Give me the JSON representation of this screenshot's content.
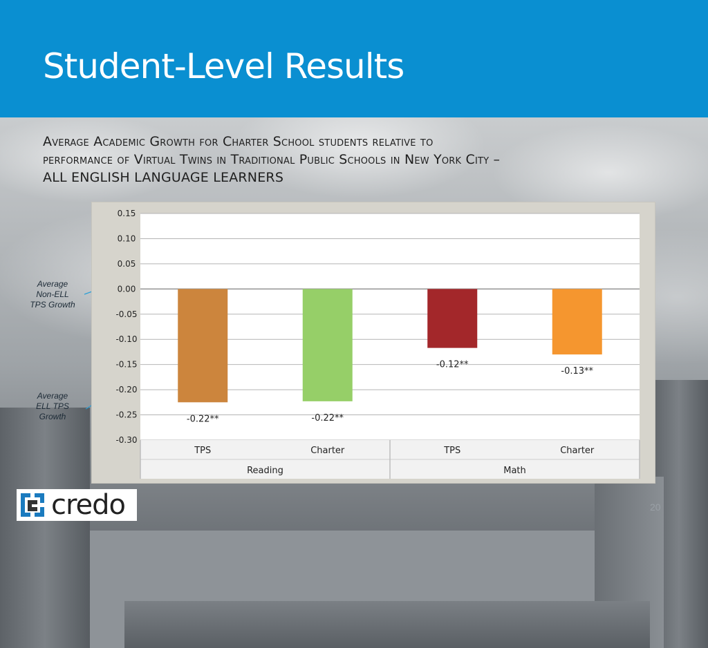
{
  "slide": {
    "title": "Student-Level Results",
    "subtitle_lines": [
      "Average Academic Growth for Charter School students relative to",
      "performance of Virtual Twins in Traditional Public Schools in New York City –",
      "ALL ENGLISH LANGUAGE LEARNERS"
    ],
    "page_number": "20",
    "logo_text": "credo"
  },
  "annotations": {
    "non_ell": [
      "Average",
      "Non-ELL",
      "TPS Growth"
    ],
    "ell": [
      "Average",
      "ELL TPS",
      "Growth"
    ]
  },
  "chart_data": {
    "type": "bar",
    "title": "",
    "xlabel": "",
    "ylabel": "",
    "ylim": [
      -0.3,
      0.15
    ],
    "yticks": [
      0.15,
      0.1,
      0.05,
      0.0,
      -0.05,
      -0.1,
      -0.15,
      -0.2,
      -0.25,
      -0.3
    ],
    "ytick_labels": [
      "0.15",
      "0.10",
      "0.05",
      "0.00",
      "-0.05",
      "-0.10",
      "-0.15",
      "-0.20",
      "-0.25",
      "-0.30"
    ],
    "grid": true,
    "groups": [
      "Reading",
      "Math"
    ],
    "categories": [
      "TPS",
      "Charter",
      "TPS",
      "Charter"
    ],
    "category_group": [
      0,
      0,
      1,
      1
    ],
    "values": [
      -0.225,
      -0.223,
      -0.117,
      -0.13
    ],
    "data_labels": [
      "-0.22**",
      "-0.22**",
      "-0.12**",
      "-0.13**"
    ],
    "colors": [
      "#cc853d",
      "#96cf68",
      "#a3272a",
      "#f5962f"
    ]
  }
}
